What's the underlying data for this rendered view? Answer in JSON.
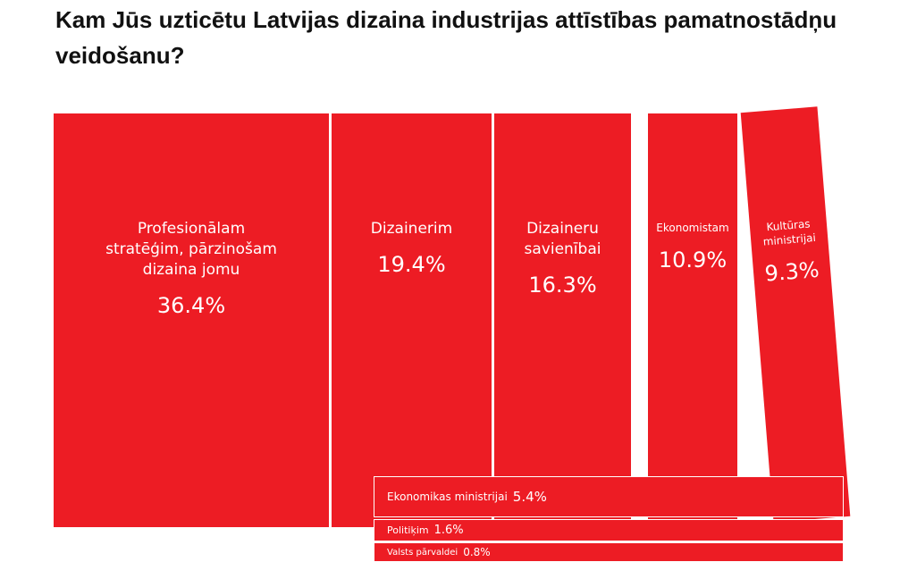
{
  "chart_data": {
    "type": "books",
    "title": "Kam Jūs uzticētu Latvijas dizaina industrijas attīstības pamatnostādņu veidošanu?",
    "categories": [
      "Profesionālam stratēģim, pārzinošam dizaina jomu",
      "Dizainerim",
      "Dizaineru savienībai",
      "Ekonomistam",
      "Kultūras ministrijai",
      "Ekonomikas ministrijai",
      "Politiķim",
      "Valsts pārvaldei"
    ],
    "values": [
      36.4,
      19.4,
      16.3,
      10.9,
      9.3,
      5.4,
      1.6,
      0.8
    ],
    "value_labels": [
      "36.4%",
      "19.4%",
      "16.3%",
      "10.9%",
      "9.3%",
      "5.4%",
      "1.6%",
      "0.8%"
    ],
    "color": "#ed1c24"
  }
}
